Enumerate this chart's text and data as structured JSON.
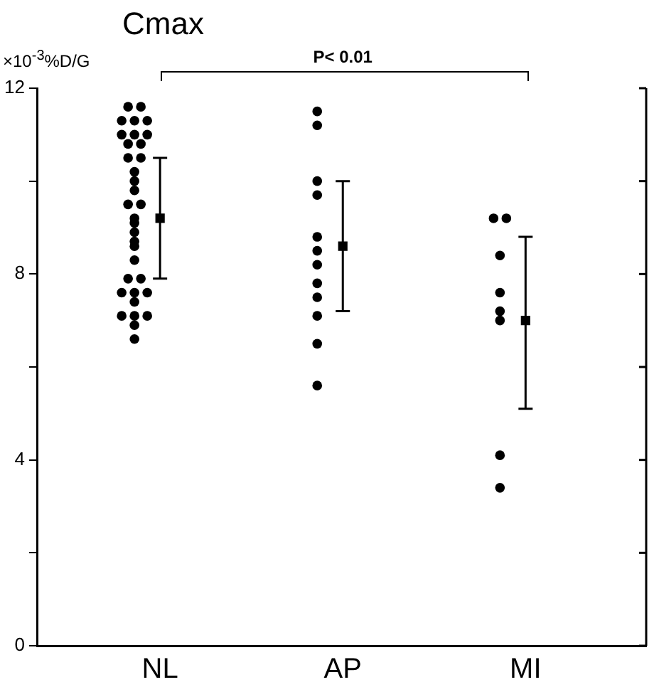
{
  "chart_data": {
    "type": "scatter",
    "title": "Cmax",
    "ylabel": "×10$^{-3}$%D/G",
    "categories": [
      "NL",
      "AP",
      "MI"
    ],
    "ylim": [
      0,
      12
    ],
    "yticks": [
      0,
      {
        "value": 2,
        "label": null
      },
      4,
      {
        "value": 6,
        "label": null
      },
      8,
      {
        "value": 10,
        "label": null
      },
      12
    ],
    "grid": false,
    "legend": false,
    "annotations": [
      "P< 0.01"
    ],
    "series": [
      {
        "type": "scatter",
        "color": "#000000",
        "marker": "square",
        "x": [
          "NL",
          "AP",
          "MI"
        ],
        "values": [
          9.2,
          8.6,
          7.0
        ],
        "errors": [
          [
            7.9,
            10.5
          ],
          [
            7.2,
            10.0
          ],
          [
            5.1,
            8.8
          ]
        ]
      },
      {
        "type": "scatter",
        "color": "#000000",
        "marker": "circle",
        "x": [
          "NL",
          "NL",
          "NL",
          "NL",
          "NL",
          "NL",
          "NL",
          "NL",
          "NL",
          "NL",
          "NL",
          "NL",
          "NL",
          "NL",
          "NL",
          "NL",
          "NL",
          "NL",
          "NL",
          "NL",
          "NL",
          "NL",
          "NL",
          "NL",
          "NL",
          "NL",
          "NL",
          "NL",
          "NL",
          "NL",
          "NL",
          "NL",
          "NL",
          "NL",
          "AP",
          "AP",
          "AP",
          "AP",
          "AP",
          "AP",
          "AP",
          "AP",
          "AP",
          "AP",
          "AP",
          "AP",
          "MI",
          "MI",
          "MI",
          "MI",
          "MI",
          "MI",
          "MI",
          "MI"
        ],
        "values": [
          11.6,
          11.6,
          11.3,
          11.3,
          11.3,
          11.0,
          11.0,
          11.0,
          10.8,
          10.8,
          10.5,
          10.5,
          10.2,
          10.0,
          9.8,
          9.5,
          9.5,
          9.2,
          9.1,
          8.9,
          8.7,
          8.6,
          8.3,
          7.9,
          7.9,
          7.6,
          7.6,
          7.6,
          7.4,
          7.1,
          7.1,
          7.1,
          6.9,
          6.6,
          11.5,
          11.2,
          10.0,
          9.7,
          8.8,
          8.5,
          8.2,
          7.8,
          7.5,
          7.1,
          6.5,
          5.6,
          9.2,
          9.2,
          8.4,
          7.6,
          7.2,
          7.0,
          4.1,
          3.4
        ]
      }
    ]
  }
}
